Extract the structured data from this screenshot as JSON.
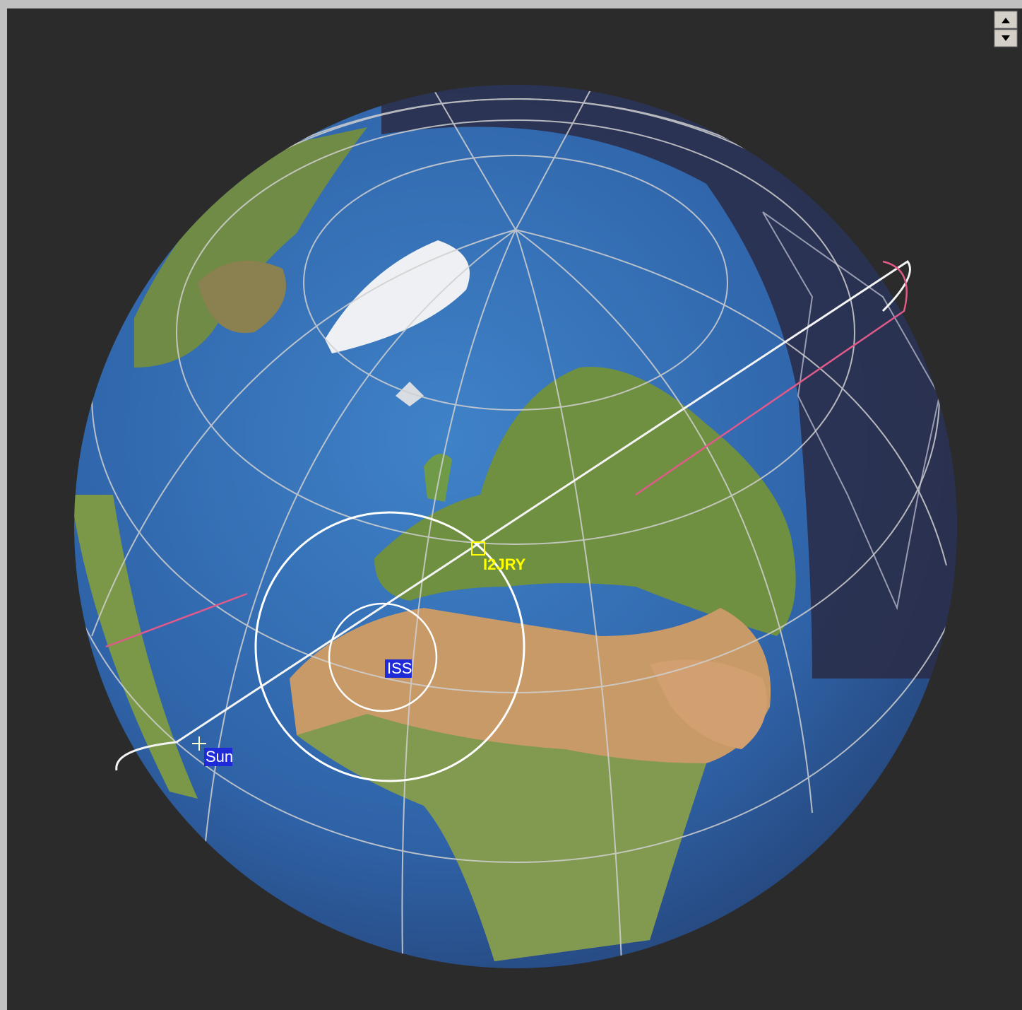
{
  "labels": {
    "station": "I2JRY",
    "satellite": "ISS",
    "sun": "Sun"
  }
}
